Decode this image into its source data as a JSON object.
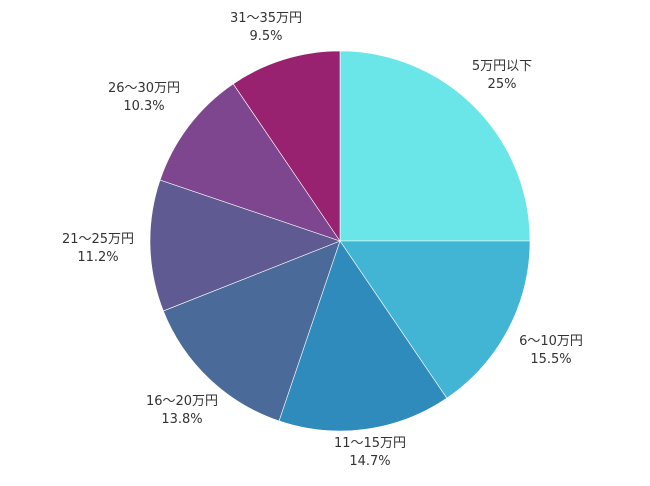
{
  "chart_data": {
    "type": "pie",
    "start_angle": "12 o'clock",
    "direction": "clockwise",
    "slices": [
      {
        "label": "5万円以下",
        "value": 25,
        "display": "25%",
        "color": "#6AE5E8"
      },
      {
        "label": "6〜10万円",
        "value": 15.5,
        "display": "15.5%",
        "color": "#41B5D3"
      },
      {
        "label": "11〜15万円",
        "value": 14.7,
        "display": "14.7%",
        "color": "#2E8BBC"
      },
      {
        "label": "16〜20万円",
        "value": 13.8,
        "display": "13.8%",
        "color": "#4A6A99"
      },
      {
        "label": "21〜25万円",
        "value": 11.2,
        "display": "11.2%",
        "color": "#605A92"
      },
      {
        "label": "26〜30万円",
        "value": 10.3,
        "display": "10.3%",
        "color": "#7E468E"
      },
      {
        "label": "31〜35万円",
        "value": 9.5,
        "display": "9.5%",
        "color": "#98226F"
      }
    ]
  }
}
